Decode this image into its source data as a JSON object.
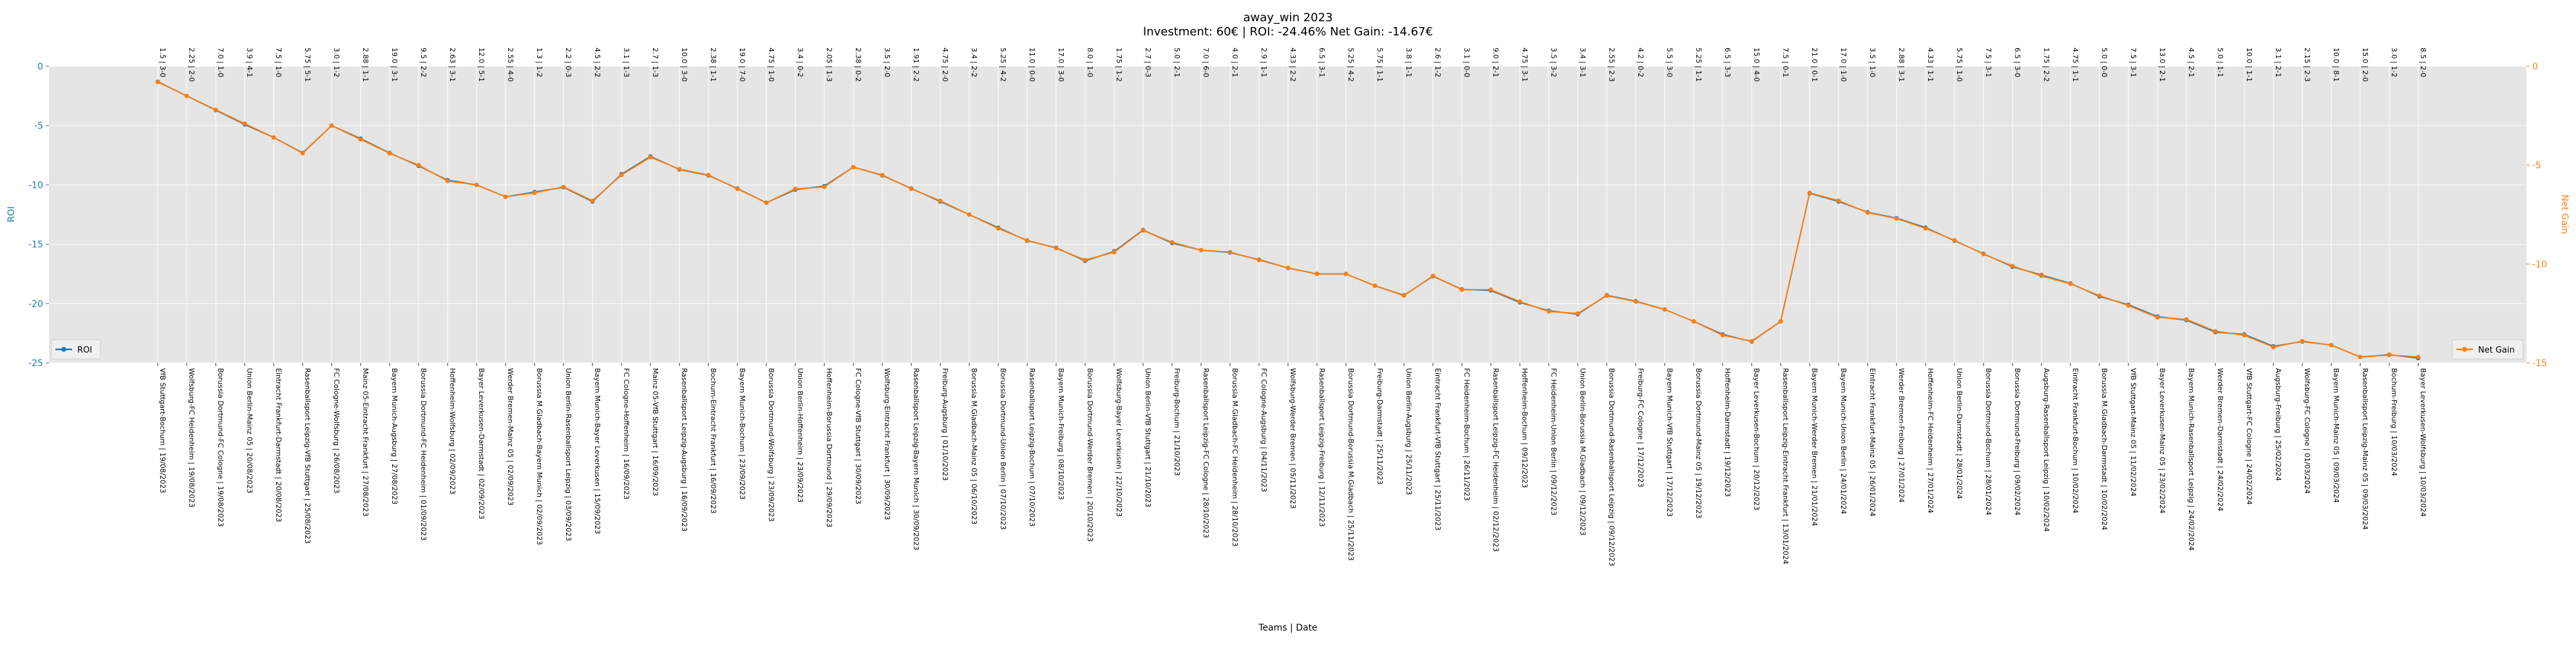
{
  "chart_data": {
    "type": "line",
    "title": "away_win 2023",
    "subtitle": "Investment: 60€ | ROI: -24.46% Net Gain: -14.67€",
    "xlabel": "Teams | Date",
    "ylabel_left": "ROI",
    "ylabel_right": "Net Gain",
    "ylim_left": [
      -25,
      0
    ],
    "yticks_left": [
      0,
      -5,
      -10,
      -15,
      -20,
      -25
    ],
    "ylim_right": [
      -15,
      0
    ],
    "yticks_right": [
      0,
      -5,
      -10,
      -15
    ],
    "grid": true,
    "colors": {
      "roi": "#1f77b4",
      "net_gain": "#ff7f0e",
      "plot_bg": "#e5e5e5",
      "grid": "#ffffff"
    },
    "legend_left": "bottom-left",
    "legend_right": "bottom-right",
    "categories": [
      "VfB Stuttgart-Bochum | 19/08/2023",
      "Wolfsburg-FC Heidenheim | 19/08/2023",
      "Borussia Dortmund-FC Cologne | 19/08/2023",
      "Union Berlin-Mainz 05 | 20/08/2023",
      "Eintracht Frankfurt-Darmstadt | 20/08/2023",
      "Rasenballsport Leipzig-VfB Stuttgart | 25/08/2023",
      "FC Cologne-Wolfsburg | 26/08/2023",
      "Mainz 05-Eintracht Frankfurt | 27/08/2023",
      "Bayern Munich-Augsburg | 27/08/2023",
      "Borussia Dortmund-FC Heidenheim | 01/09/2023",
      "Hoffenheim-Wolfsburg | 02/09/2023",
      "Bayer Leverkusen-Darmstadt | 02/09/2023",
      "Werder Bremen-Mainz 05 | 02/09/2023",
      "Borussia M.Gladbach-Bayern Munich | 02/09/2023",
      "Union Berlin-Rasenballsport Leipzig | 03/09/2023",
      "Bayern Munich-Bayer Leverkusen | 15/09/2023",
      "FC Cologne-Hoffenheim | 16/09/2023",
      "Mainz 05-VfB Stuttgart | 16/09/2023",
      "Rasenballsport Leipzig-Augsburg | 16/09/2023",
      "Bochum-Eintracht Frankfurt | 16/09/2023",
      "Bayern Munich-Bochum | 23/09/2023",
      "Borussia Dortmund-Wolfsburg | 23/09/2023",
      "Union Berlin-Hoffenheim | 23/09/2023",
      "Hoffenheim-Borussia Dortmund | 29/09/2023",
      "FC Cologne-VfB Stuttgart | 30/09/2023",
      "Wolfsburg-Eintracht Frankfurt | 30/09/2023",
      "Rasenballsport Leipzig-Bayern Munich | 30/09/2023",
      "Freiburg-Augsburg | 01/10/2023",
      "Borussia M.Gladbach-Mainz 05 | 06/10/2023",
      "Borussia Dortmund-Union Berlin | 07/10/2023",
      "Rasenballsport Leipzig-Bochum | 07/10/2023",
      "Bayern Munich-Freiburg | 08/10/2023",
      "Borussia Dortmund-Werder Bremen | 20/10/2023",
      "Wolfsburg-Bayer Leverkusen | 22/10/2023",
      "Union Berlin-VfB Stuttgart | 21/10/2023",
      "Freiburg-Bochum | 21/10/2023",
      "Rasenballsport Leipzig-FC Cologne | 28/10/2023",
      "Borussia M.Gladbach-FC Heidenheim | 28/10/2023",
      "FC Cologne-Augsburg | 04/11/2023",
      "Wolfsburg-Werder Bremen | 05/11/2023",
      "Rasenballsport Leipzig-Freiburg | 12/11/2023",
      "Borussia Dortmund-Borussia M.Gladbach | 25/11/2023",
      "Freiburg-Darmstadt | 25/11/2023",
      "Union Berlin-Augsburg | 25/11/2023",
      "Eintracht Frankfurt-VfB Stuttgart | 25/11/2023",
      "FC Heidenheim-Bochum | 26/11/2023",
      "Rasenballsport Leipzig-FC Heidenheim | 02/12/2023",
      "Hoffenheim-Bochum | 09/12/2023",
      "FC Heidenheim-Union Berlin | 09/12/2023",
      "Union Berlin-Borussia M.Gladbach | 09/12/2023",
      "Borussia Dortmund-Rasenballsport Leipzig | 09/12/2023",
      "Freiburg-FC Cologne | 17/12/2023",
      "Bayern Munich-VfB Stuttgart | 17/12/2023",
      "Borussia Dortmund-Mainz 05 | 19/12/2023",
      "Hoffenheim-Darmstadt | 19/12/2023",
      "Bayer Leverkusen-Bochum | 20/12/2023",
      "Rasenballsport Leipzig-Eintracht Frankfurt | 13/01/2024",
      "Bayern Munich-Werder Bremen | 21/01/2024",
      "Bayern Munich-Union Berlin | 24/01/2024",
      "Eintracht Frankfurt-Mainz 05 | 26/01/2024",
      "Werder Bremen-Freiburg | 27/01/2024",
      "Hoffenheim-FC Heidenheim | 27/01/2024",
      "Union Berlin-Darmstadt | 28/01/2024",
      "Borussia Dortmund-Bochum | 28/01/2024",
      "Borussia Dortmund-Freiburg | 09/02/2024",
      "Augsburg-Rasenballsport Leipzig | 10/02/2024",
      "Eintracht Frankfurt-Bochum | 10/02/2024",
      "Borussia M.Gladbach-Darmstadt | 10/02/2024",
      "VfB Stuttgart-Mainz 05 | 11/02/2024",
      "Bayer Leverkusen-Mainz 05 | 23/02/2024",
      "Bayern Munich-Rasenballsport Leipzig | 24/02/2024",
      "Werder Bremen-Darmstadt | 24/02/2024",
      "VfB Stuttgart-FC Cologne | 24/02/2024",
      "Augsburg-Freiburg | 25/02/2024",
      "Wolfsburg-FC Cologne | 01/03/2024",
      "Bayern Munich-Mainz 05 | 09/03/2024",
      "Rasenballsport Leipzig-Mainz 05 | 09/03/2024",
      "Bochum-Freiburg | 10/03/2024",
      "Bayer Leverkusen-Wolfsburg | 10/03/2024"
    ],
    "top_labels": [
      "1.5 | 3-0",
      "2.25 | 2-0",
      "7.0 | 1-0",
      "3.9 | 4-1",
      "7.5 | 1-0",
      "5.75 | 5-1",
      "3.0 | 1-2",
      "2.88 | 1-1",
      "19.0 | 3-1",
      "9.5 | 2-2",
      "2.63 | 3-1",
      "12.0 | 5-1",
      "2.55 | 4-0",
      "1.3 | 1-2",
      "2.2 | 0-3",
      "4.5 | 2-2",
      "3.1 | 1-3",
      "2.7 | 1-3",
      "10.0 | 3-0",
      "2.38 | 1-1",
      "19.0 | 7-0",
      "4.75 | 1-0",
      "3.4 | 0-2",
      "2.05 | 1-3",
      "2.38 | 0-2",
      "3.5 | 2-0",
      "1.91 | 2-2",
      "4.75 | 2-0",
      "3.4 | 2-2",
      "5.25 | 4-2",
      "11.0 | 0-0",
      "17.0 | 3-0",
      "8.0 | 1-0",
      "1.75 | 1-2",
      "2.7 | 0-3",
      "5.0 | 2-1",
      "7.0 | 6-0",
      "4.0 | 2-1",
      "2.9 | 1-1",
      "4.33 | 2-2",
      "6.5 | 3-1",
      "5.25 | 4-2",
      "5.75 | 1-1",
      "3.8 | 1-1",
      "2.6 | 1-2",
      "3.1 | 0-0",
      "9.0 | 2-1",
      "4.75 | 3-1",
      "3.5 | 3-2",
      "3.4 | 3-1",
      "2.55 | 2-3",
      "4.2 | 0-2",
      "5.5 | 3-0",
      "5.25 | 1-1",
      "6.5 | 3-3",
      "15.0 | 4-0",
      "7.5 | 0-1",
      "21.0 | 0-1",
      "17.0 | 1-0",
      "3.5 | 1-0",
      "2.88 | 3-1",
      "4.33 | 1-1",
      "5.75 | 1-0",
      "7.5 | 3-1",
      "6.5 | 3-0",
      "1.75 | 2-2",
      "4.75 | 1-1",
      "5.0 | 0-0",
      "7.5 | 3-1",
      "13.0 | 2-1",
      "4.5 | 2-1",
      "5.0 | 1-1",
      "10.0 | 1-1",
      "3.1 | 2-1",
      "2.15 | 2-3",
      "10.0 | 8-1",
      "15.0 | 2-0",
      "3.0 | 1-2",
      "8.5 | 2-0"
    ],
    "series": [
      {
        "name": "ROI",
        "axis": "left",
        "values": [
          -1.3,
          -2.5,
          -3.7,
          -4.9,
          -6.0,
          -7.3,
          -5.0,
          -6.1,
          -7.3,
          -8.4,
          -9.6,
          -10.0,
          -11.0,
          -10.6,
          -10.2,
          -11.4,
          -9.1,
          -7.6,
          -8.7,
          -9.2,
          -10.3,
          -11.5,
          -10.4,
          -10.1,
          -8.5,
          -9.2,
          -10.3,
          -11.4,
          -12.5,
          -13.6,
          -14.7,
          -15.3,
          -16.4,
          -15.6,
          -13.8,
          -14.9,
          -15.5,
          -15.7,
          -16.3,
          -17.0,
          -17.5,
          -17.5,
          -18.5,
          -19.3,
          -17.7,
          -18.8,
          -18.9,
          -19.9,
          -20.6,
          -20.9,
          -19.3,
          -19.8,
          -20.5,
          -21.5,
          -22.6,
          -23.2,
          -21.5,
          -10.7,
          -11.4,
          -12.3,
          -12.8,
          -13.6,
          -14.7,
          -15.8,
          -16.9,
          -17.6,
          -18.3,
          -19.4,
          -20.1,
          -21.1,
          -21.4,
          -22.4,
          -22.6,
          -23.6,
          -23.2,
          -23.5,
          -24.5,
          -24.3,
          -24.6
        ]
      },
      {
        "name": "Net Gain",
        "axis": "right",
        "values": [
          -0.8,
          -1.5,
          -2.2,
          -2.9,
          -3.6,
          -4.4,
          -3.0,
          -3.7,
          -4.4,
          -5.0,
          -5.8,
          -6.0,
          -6.6,
          -6.4,
          -6.1,
          -6.8,
          -5.5,
          -4.6,
          -5.2,
          -5.5,
          -6.2,
          -6.9,
          -6.2,
          -6.1,
          -5.1,
          -5.5,
          -6.2,
          -6.8,
          -7.5,
          -8.2,
          -8.8,
          -9.2,
          -9.8,
          -9.4,
          -8.3,
          -8.9,
          -9.3,
          -9.4,
          -9.8,
          -10.2,
          -10.5,
          -10.5,
          -11.1,
          -11.6,
          -10.6,
          -11.3,
          -11.3,
          -11.9,
          -12.4,
          -12.5,
          -11.6,
          -11.9,
          -12.3,
          -12.9,
          -13.6,
          -13.9,
          -12.9,
          -6.4,
          -6.8,
          -7.4,
          -7.7,
          -8.2,
          -8.8,
          -9.5,
          -10.1,
          -10.6,
          -11.0,
          -11.6,
          -12.1,
          -12.7,
          -12.8,
          -13.4,
          -13.6,
          -14.2,
          -13.9,
          -14.1,
          -14.7,
          -14.6,
          -14.7
        ]
      }
    ]
  }
}
